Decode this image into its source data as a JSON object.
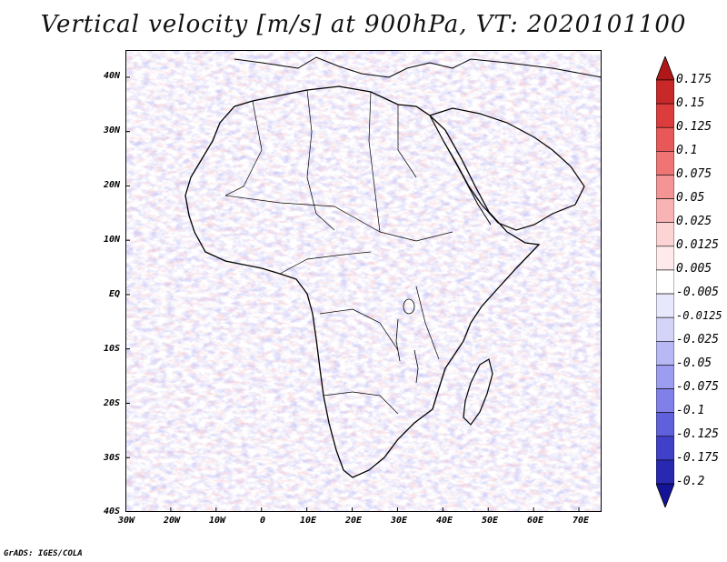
{
  "title": "Vertical velocity [m/s] at 900hPa, VT: 2020101100",
  "lat_labels": [
    "40N",
    "30N",
    "20N",
    "10N",
    "EQ",
    "10S",
    "20S",
    "30S",
    "40S"
  ],
  "lon_labels": [
    "30W",
    "20W",
    "10W",
    "0",
    "10E",
    "20E",
    "30E",
    "40E",
    "50E",
    "60E",
    "70E"
  ],
  "colorbar": {
    "levels": [
      "0.175",
      "0.15",
      "0.125",
      "0.1",
      "0.075",
      "0.05",
      "0.025",
      "0.0125",
      "0.005",
      "-0.005",
      "-0.0125",
      "-0.025",
      "-0.05",
      "-0.075",
      "-0.1",
      "-0.125",
      "-0.175",
      "-0.2"
    ],
    "colors": [
      "#b01818",
      "#c82828",
      "#dc3c3c",
      "#e85858",
      "#f07474",
      "#f49494",
      "#f8b4b4",
      "#fcd4d4",
      "#feeaea",
      "#ffffff",
      "#e8e8fc",
      "#d4d4f8",
      "#b8b8f4",
      "#9c9cf0",
      "#8080e8",
      "#6060dc",
      "#4040c8",
      "#2828b0",
      "#141498"
    ]
  },
  "map": {
    "region": "Africa",
    "field": "Vertical velocity",
    "level": "900hPa",
    "valid_time": "2020101100",
    "lon_range": [
      -30,
      75
    ],
    "lat_range": [
      -40,
      45
    ]
  },
  "credit": "GrADS: IGES/COLA"
}
